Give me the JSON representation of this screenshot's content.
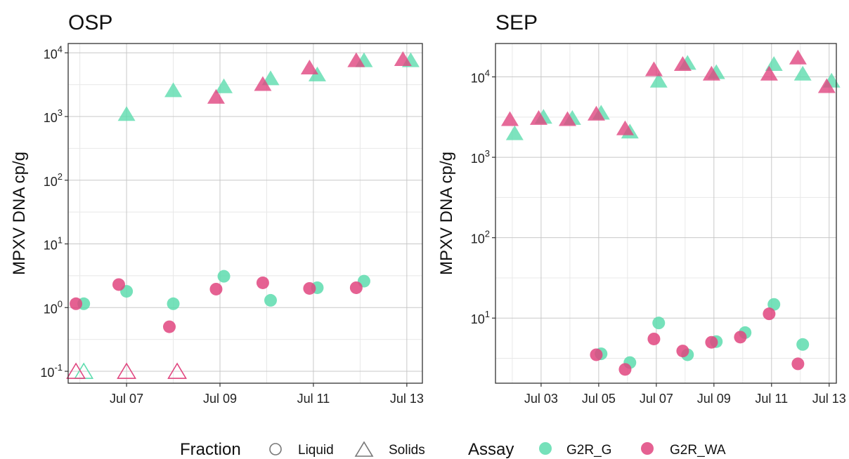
{
  "colors": {
    "G2R_G": "#5ddcae",
    "G2R_WA": "#e0457f",
    "grid_major": "#c8c8c8",
    "grid_minor": "#e8e8e8",
    "axis": "#333333",
    "legend_outline": "#777777"
  },
  "legend": {
    "fraction_title": "Fraction",
    "fraction_items": [
      "Liquid",
      "Solids"
    ],
    "assay_title": "Assay",
    "assay_items": [
      "G2R_G",
      "G2R_WA"
    ]
  },
  "chart_data": [
    {
      "type": "scatter",
      "title": "OSP",
      "xlabel": "",
      "ylabel": "MPXV DNA cp/g",
      "yscale": "log10",
      "xlim": [
        "2022-07-05T18:00",
        "2022-07-13T08:00"
      ],
      "ylim": [
        0.065,
        14000
      ],
      "xticks": [
        "2022-07-07",
        "2022-07-09",
        "2022-07-11",
        "2022-07-13"
      ],
      "xtick_labels": [
        "Jul 07",
        "Jul 09",
        "Jul 11",
        "Jul 13"
      ],
      "yticks": [
        0.1,
        1,
        10,
        100,
        1000,
        10000
      ],
      "ytick_labels": [
        [
          "10",
          "-1"
        ],
        [
          "10",
          "0"
        ],
        [
          "10",
          "1"
        ],
        [
          "10",
          "2"
        ],
        [
          "10",
          "3"
        ],
        [
          "10",
          "4"
        ]
      ],
      "grid": true,
      "series": [
        {
          "assay": "G2R_G",
          "fraction": "Liquid",
          "points": [
            [
              "2022-07-06T02:00",
              1.15
            ],
            [
              "2022-07-07T00:00",
              1.8
            ],
            [
              "2022-07-08T00:00",
              1.15
            ],
            [
              "2022-07-09T02:00",
              3.1
            ],
            [
              "2022-07-10T02:00",
              1.3
            ],
            [
              "2022-07-11T02:00",
              2.05
            ],
            [
              "2022-07-12T02:00",
              2.6
            ]
          ]
        },
        {
          "assay": "G2R_WA",
          "fraction": "Liquid",
          "points": [
            [
              "2022-07-05T22:00",
              1.15
            ],
            [
              "2022-07-06T20:00",
              2.3
            ],
            [
              "2022-07-07T22:00",
              0.5
            ],
            [
              "2022-07-08T22:00",
              1.95
            ],
            [
              "2022-07-09T22:00",
              2.45
            ],
            [
              "2022-07-10T22:00",
              2.0
            ],
            [
              "2022-07-11T22:00",
              2.05
            ]
          ]
        },
        {
          "assay": "G2R_G",
          "fraction": "Solids",
          "points": [
            [
              "2022-07-06T02:00",
              0.1
            ],
            [
              "2022-07-07T00:00",
              1100
            ],
            [
              "2022-07-08T00:00",
              2600
            ],
            [
              "2022-07-09T02:00",
              3000
            ],
            [
              "2022-07-10T02:00",
              4000
            ],
            [
              "2022-07-11T02:00",
              4600
            ],
            [
              "2022-07-12T02:00",
              7700
            ],
            [
              "2022-07-13T02:00",
              7700
            ]
          ]
        },
        {
          "assay": "G2R_WA",
          "fraction": "Solids",
          "points": [
            [
              "2022-07-05T22:00",
              0.1
            ],
            [
              "2022-07-07T00:00",
              0.1
            ],
            [
              "2022-07-08T02:00",
              0.1
            ],
            [
              "2022-07-08T22:00",
              2050
            ],
            [
              "2022-07-09T22:00",
              3250
            ],
            [
              "2022-07-10T22:00",
              5900
            ],
            [
              "2022-07-11T22:00",
              7700
            ],
            [
              "2022-07-12T22:00",
              8000
            ]
          ]
        }
      ]
    },
    {
      "type": "scatter",
      "title": "SEP",
      "xlabel": "",
      "ylabel": "MPXV DNA cp/g",
      "yscale": "log10",
      "xlim": [
        "2022-07-01T10:00",
        "2022-07-13T06:00"
      ],
      "ylim": [
        1.55,
        26000
      ],
      "xticks": [
        "2022-07-03",
        "2022-07-05",
        "2022-07-07",
        "2022-07-09",
        "2022-07-11",
        "2022-07-13"
      ],
      "xtick_labels": [
        "Jul 03",
        "Jul 05",
        "Jul 07",
        "Jul 09",
        "Jul 11",
        "Jul 13"
      ],
      "yticks": [
        10,
        100,
        1000,
        10000
      ],
      "ytick_labels": [
        [
          "10",
          "1"
        ],
        [
          "10",
          "2"
        ],
        [
          "10",
          "3"
        ],
        [
          "10",
          "4"
        ]
      ],
      "grid": true,
      "series": [
        {
          "assay": "G2R_G",
          "fraction": "Liquid",
          "points": [
            [
              "2022-07-05T02:00",
              3.6
            ],
            [
              "2022-07-06T02:00",
              2.8
            ],
            [
              "2022-07-07T02:00",
              8.7
            ],
            [
              "2022-07-08T02:00",
              3.5
            ],
            [
              "2022-07-09T02:00",
              5.1
            ],
            [
              "2022-07-10T02:00",
              6.6
            ],
            [
              "2022-07-11T02:00",
              14.8
            ],
            [
              "2022-07-12T02:00",
              4.7
            ]
          ]
        },
        {
          "assay": "G2R_WA",
          "fraction": "Liquid",
          "points": [
            [
              "2022-07-04T22:00",
              3.5
            ],
            [
              "2022-07-05T22:00",
              2.3
            ],
            [
              "2022-07-06T22:00",
              5.5
            ],
            [
              "2022-07-07T22:00",
              3.9
            ],
            [
              "2022-07-08T22:00",
              5.0
            ],
            [
              "2022-07-09T22:00",
              5.8
            ],
            [
              "2022-07-10T22:00",
              11.3
            ],
            [
              "2022-07-11T22:00",
              2.7
            ]
          ]
        },
        {
          "assay": "G2R_G",
          "fraction": "Solids",
          "points": [
            [
              "2022-07-02T02:00",
              2000
            ],
            [
              "2022-07-03T02:00",
              3200
            ],
            [
              "2022-07-04T02:00",
              3100
            ],
            [
              "2022-07-05T02:00",
              3600
            ],
            [
              "2022-07-06T02:00",
              2100
            ],
            [
              "2022-07-07T02:00",
              9000
            ],
            [
              "2022-07-08T02:00",
              15000
            ],
            [
              "2022-07-09T02:00",
              11500
            ],
            [
              "2022-07-11T02:00",
              14500
            ],
            [
              "2022-07-12T02:00",
              11000
            ],
            [
              "2022-07-13T02:00",
              9000
            ]
          ]
        },
        {
          "assay": "G2R_WA",
          "fraction": "Solids",
          "points": [
            [
              "2022-07-01T22:00",
              3000
            ],
            [
              "2022-07-02T22:00",
              3100
            ],
            [
              "2022-07-03T22:00",
              3000
            ],
            [
              "2022-07-04T22:00",
              3500
            ],
            [
              "2022-07-05T22:00",
              2300
            ],
            [
              "2022-07-06T22:00",
              12500
            ],
            [
              "2022-07-07T22:00",
              14500
            ],
            [
              "2022-07-08T22:00",
              11000
            ],
            [
              "2022-07-10T22:00",
              11000
            ],
            [
              "2022-07-11T22:00",
              17500
            ],
            [
              "2022-07-12T22:00",
              7700
            ]
          ]
        }
      ]
    }
  ]
}
